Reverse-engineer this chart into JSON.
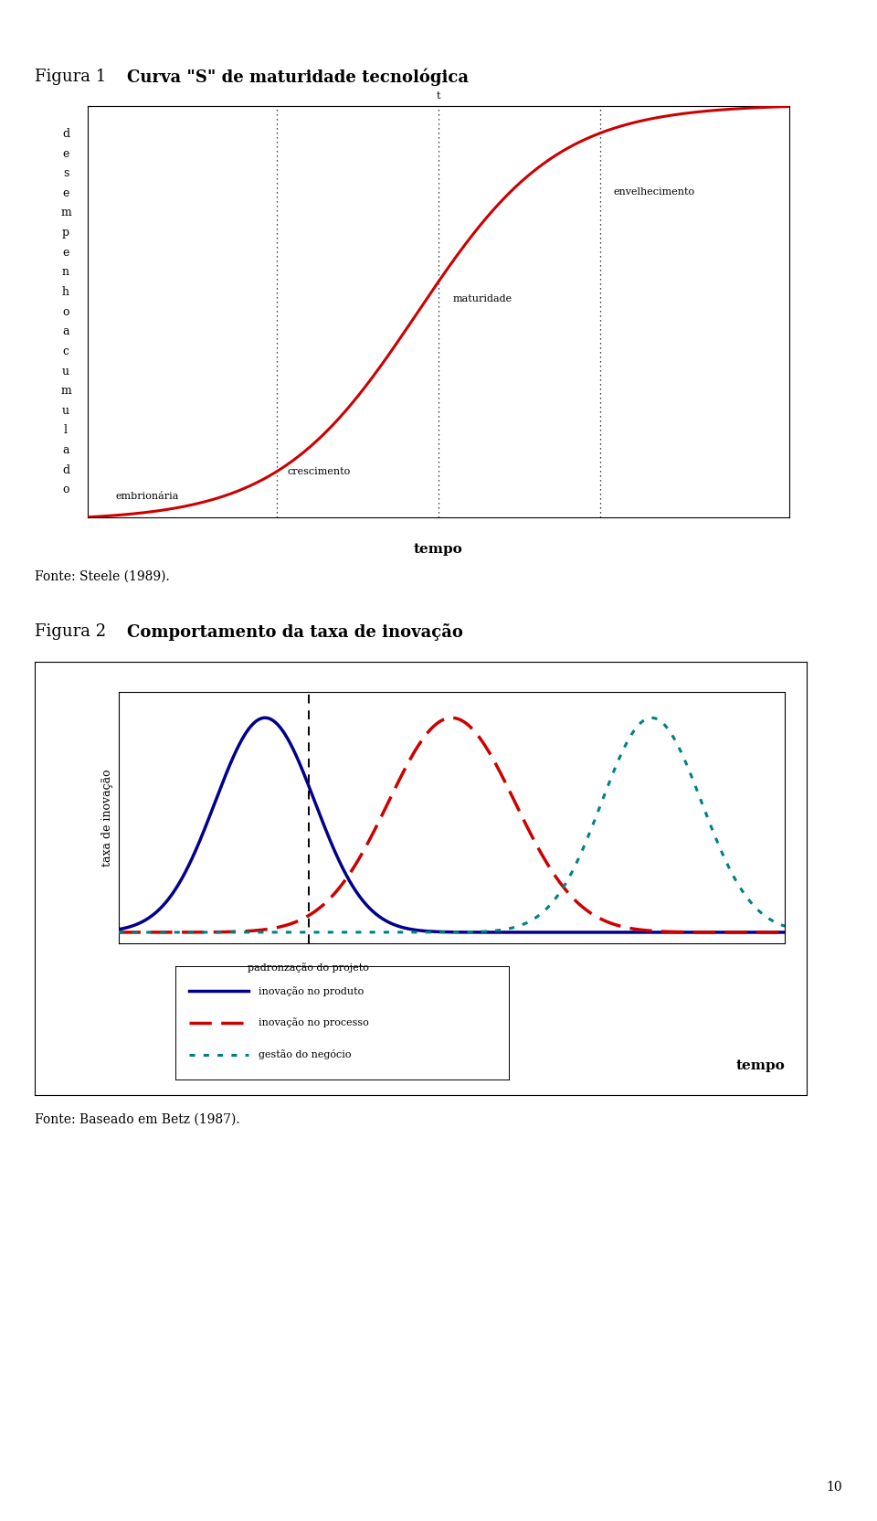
{
  "fig1_title": "Figura 1",
  "fig1_bold_title": "Curva \"S\" de maturidade tecnológica",
  "fig1_ylabel_chars": [
    "d",
    "e",
    "s",
    "e",
    "m",
    "p",
    "e",
    "n",
    "h",
    "o",
    "a",
    "c",
    "u",
    "m",
    "u",
    "l",
    "a",
    "d",
    "o"
  ],
  "fig1_xlabel": "tempo",
  "fig1_t_label": "t",
  "fig1_annotations": [
    "embrionária",
    "crescimento",
    "maturidade",
    "envelhecimento"
  ],
  "fig1_vline_positions": [
    0.27,
    0.5,
    0.73
  ],
  "fig1_curve_color": "#cc0000",
  "fig2_title": "Figura 2",
  "fig2_bold_title": "Comportamento da taxa de inovação",
  "fig2_ylabel": "taxa de inovação",
  "fig2_xlabel": "tempo",
  "fig2_padronizacao": "padronzação do projeto",
  "fig2_vline_pos": 0.285,
  "fig2_blue_color": "#00008B",
  "fig2_red_color": "#cc0000",
  "fig2_teal_color": "#008080",
  "fig2_blue_mean": 0.22,
  "fig2_blue_std": 0.075,
  "fig2_red_mean": 0.5,
  "fig2_red_std": 0.095,
  "fig2_teal_mean": 0.8,
  "fig2_teal_std": 0.075,
  "fig2_legend_blue": "inovação no produto",
  "fig2_legend_red": "inovação no processo",
  "fig2_legend_teal": "gestão do negócio",
  "fonte1": "Fonte: Steele (1989).",
  "fonte2": "Fonte: Baseado em Betz (1987).",
  "page_number": "10",
  "bg_color": "#ffffff"
}
